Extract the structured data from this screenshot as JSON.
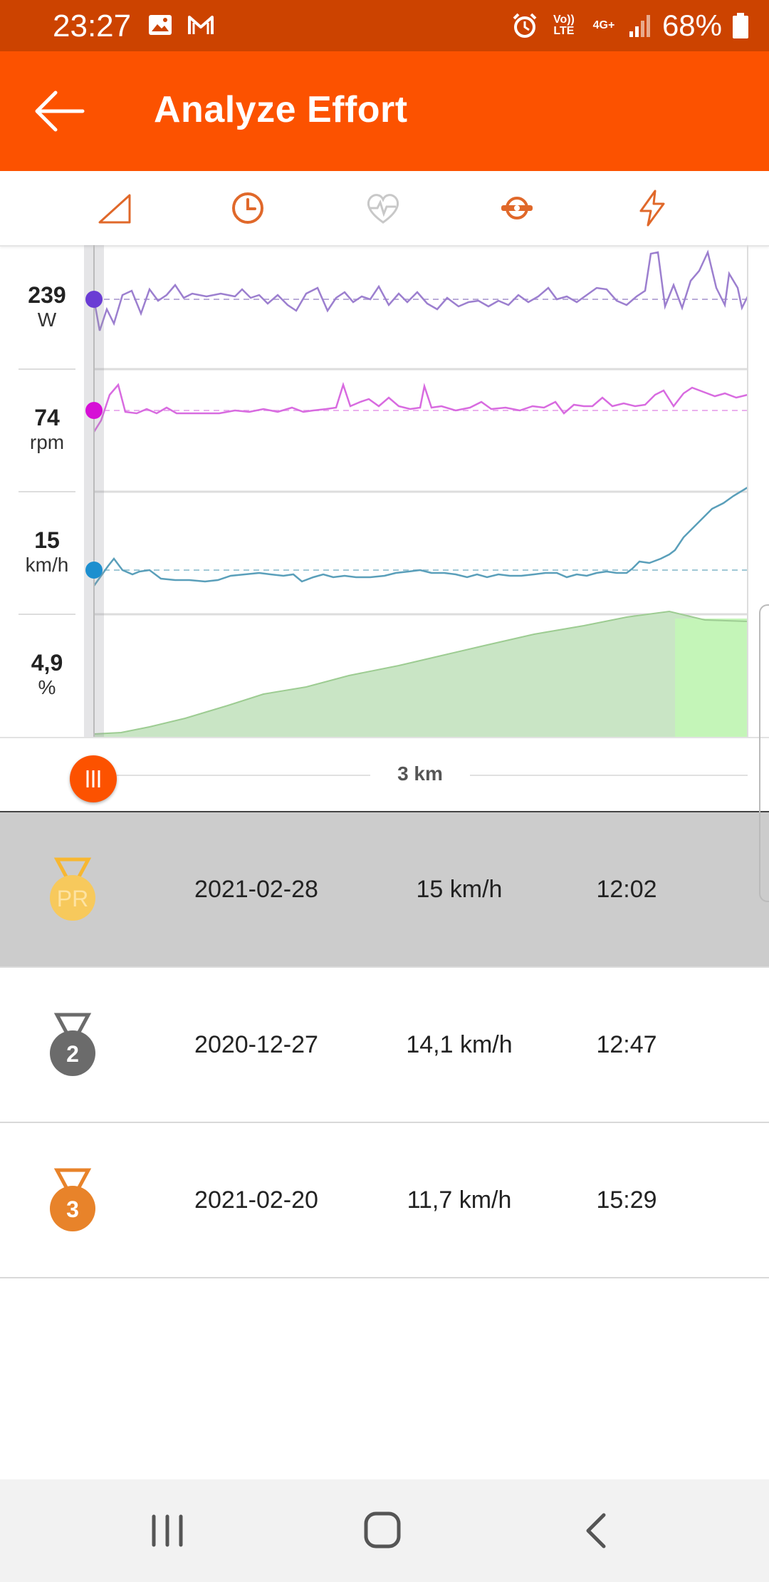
{
  "status_bar": {
    "time": "23:27",
    "battery_pct": "68%",
    "net_top": "Vo)) LTE",
    "net_4g": "4G+"
  },
  "app_bar": {
    "title": "Analyze Effort"
  },
  "tabs": [
    "grade-icon",
    "clock-icon",
    "heart-rate-icon",
    "cadence-icon",
    "power-icon"
  ],
  "chart": {
    "rows": [
      {
        "value": "239",
        "unit": "W"
      },
      {
        "value": "74",
        "unit": "rpm"
      },
      {
        "value": "15",
        "unit": "km/h"
      },
      {
        "value": "4,9",
        "unit": "%"
      }
    ],
    "colors": {
      "power": "#9c7fcf",
      "cadence": "#d86be0",
      "speed": "#5a9fba",
      "grade": "#a8dba0",
      "accent": "#fc5200"
    },
    "scrub_label": "3 km"
  },
  "efforts": [
    {
      "rank": "PR",
      "date": "2021-02-28",
      "speed": "15 km/h",
      "time": "12:02",
      "medal_color": "#f7b731",
      "selected": true
    },
    {
      "rank": "2",
      "date": "2020-12-27",
      "speed": "14,1 km/h",
      "time": "12:47",
      "medal_color": "#6b6b6b",
      "selected": false
    },
    {
      "rank": "3",
      "date": "2021-02-20",
      "speed": "11,7 km/h",
      "time": "15:29",
      "medal_color": "#e8832a",
      "selected": false
    }
  ],
  "nav": [
    "recents-icon",
    "home-icon",
    "back-icon"
  ]
}
